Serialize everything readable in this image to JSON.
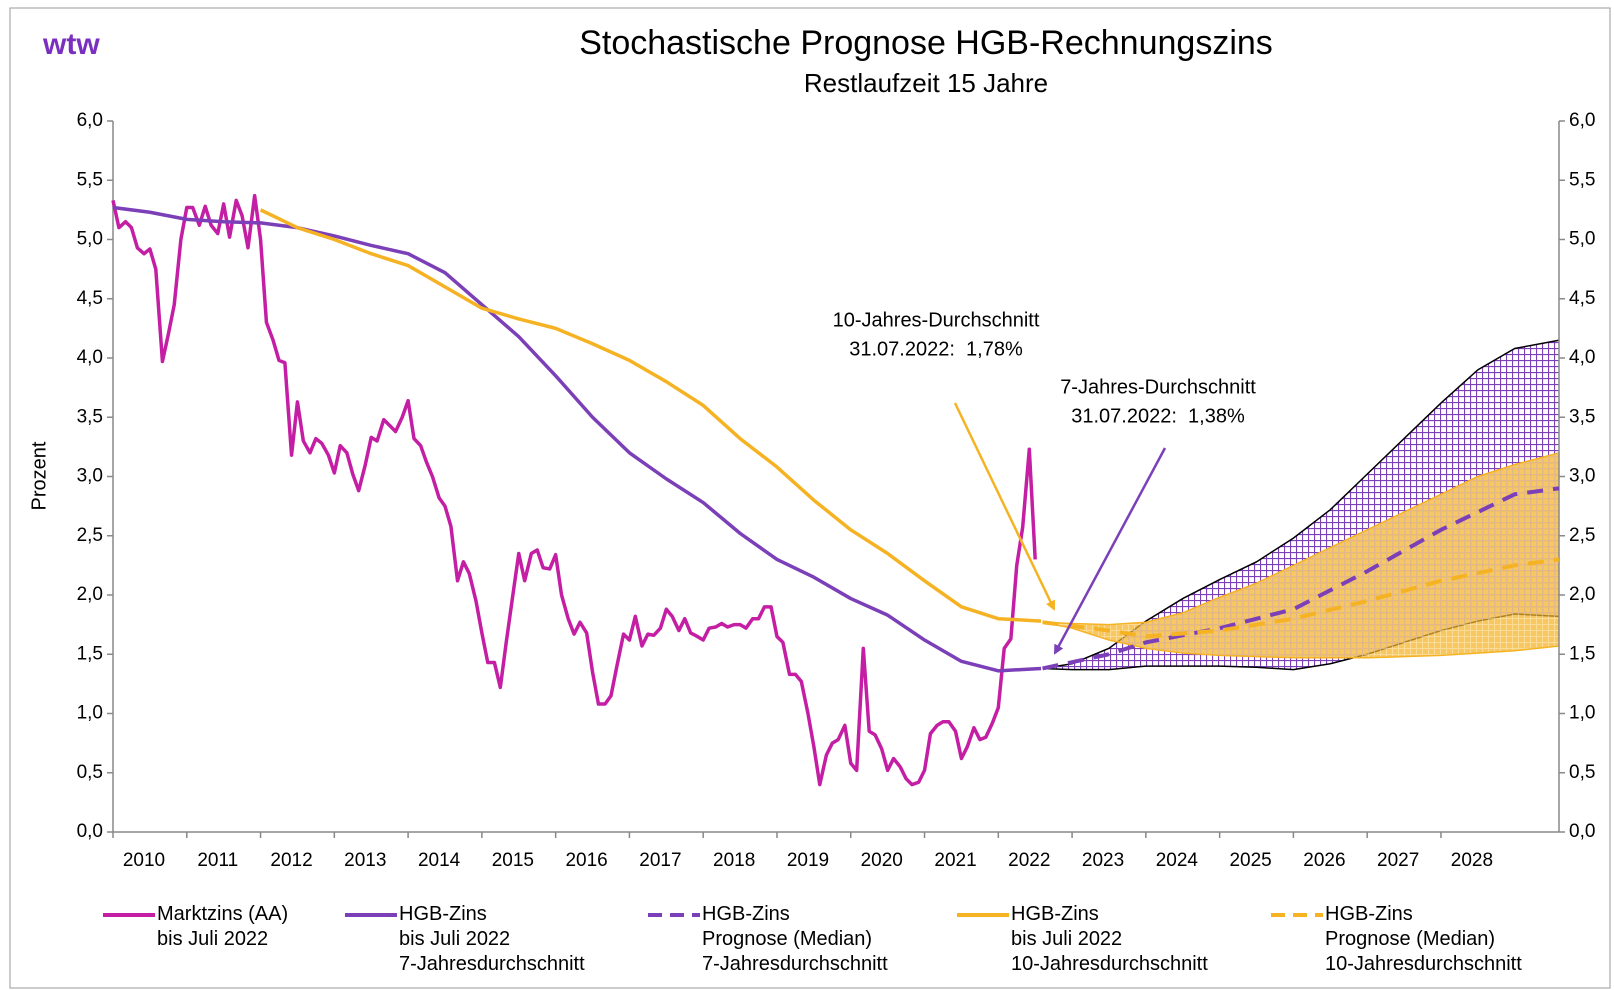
{
  "chart_data": {
    "type": "line",
    "logo": "wtw",
    "title": "Stochastische Prognose HGB-Rechnungszins",
    "subtitle": "Restlaufzeit 15 Jahre",
    "y_label": "Prozent",
    "xlim": [
      2010,
      2029.6
    ],
    "xticks": [
      2010,
      2011,
      2012,
      2013,
      2014,
      2015,
      2016,
      2017,
      2018,
      2019,
      2020,
      2021,
      2022,
      2023,
      2024,
      2025,
      2026,
      2027,
      2028
    ],
    "ylim": [
      0,
      6
    ],
    "yticks": [
      {
        "value": 0,
        "label": "0,0"
      },
      {
        "value": 0.5,
        "label": "0,5"
      },
      {
        "value": 1,
        "label": "1,0"
      },
      {
        "value": 1.5,
        "label": "1,5"
      },
      {
        "value": 2,
        "label": "2,0"
      },
      {
        "value": 2.5,
        "label": "2,5"
      },
      {
        "value": 3,
        "label": "3,0"
      },
      {
        "value": 3.5,
        "label": "3,5"
      },
      {
        "value": 4,
        "label": "4,0"
      },
      {
        "value": 4.5,
        "label": "4,5"
      },
      {
        "value": 5,
        "label": "5,0"
      },
      {
        "value": 5.5,
        "label": "5,5"
      },
      {
        "value": 6,
        "label": "6,0"
      }
    ],
    "y2lim": [
      0,
      6
    ],
    "y2ticks": [
      {
        "value": 0,
        "label": "0,0"
      },
      {
        "value": 0.5,
        "label": "0,5"
      },
      {
        "value": 1,
        "label": "1,0"
      },
      {
        "value": 1.5,
        "label": "1,5"
      },
      {
        "value": 2,
        "label": "2,0"
      },
      {
        "value": 2.5,
        "label": "2,5"
      },
      {
        "value": 3,
        "label": "3,0"
      },
      {
        "value": 3.5,
        "label": "3,5"
      },
      {
        "value": 4,
        "label": "4,0"
      },
      {
        "value": 4.5,
        "label": "4,5"
      },
      {
        "value": 5,
        "label": "5,0"
      },
      {
        "value": 5.5,
        "label": "5,5"
      },
      {
        "value": 6,
        "label": "6,0"
      }
    ],
    "grid": false,
    "bands": [
      {
        "color": "#7b3fb8",
        "edge": "#000000",
        "x": [
          2022.6,
          2023,
          2023.5,
          2024,
          2024.5,
          2025,
          2025.5,
          2026,
          2026.5,
          2027,
          2027.5,
          2028,
          2028.5,
          2029,
          2029.6
        ],
        "upper": [
          1.38,
          1.42,
          1.55,
          1.78,
          1.97,
          2.13,
          2.28,
          2.48,
          2.72,
          3.02,
          3.32,
          3.62,
          3.9,
          4.08,
          4.15
        ],
        "lower": [
          1.38,
          1.37,
          1.37,
          1.4,
          1.4,
          1.4,
          1.39,
          1.37,
          1.42,
          1.5,
          1.6,
          1.7,
          1.78,
          1.84,
          1.82
        ]
      },
      {
        "color": "#f5b324",
        "edge": "#f5b324",
        "x": [
          2022.6,
          2023,
          2023.5,
          2024,
          2024.5,
          2025,
          2025.5,
          2026,
          2026.5,
          2027,
          2027.5,
          2028,
          2028.5,
          2029,
          2029.6
        ],
        "upper": [
          1.77,
          1.76,
          1.75,
          1.77,
          1.85,
          1.98,
          2.1,
          2.25,
          2.4,
          2.55,
          2.7,
          2.85,
          3.0,
          3.1,
          3.2
        ],
        "lower": [
          1.77,
          1.72,
          1.62,
          1.55,
          1.51,
          1.49,
          1.48,
          1.47,
          1.47,
          1.47,
          1.48,
          1.49,
          1.51,
          1.53,
          1.57
        ]
      }
    ],
    "series": [
      {
        "name": "Marktzins (AA)\nbis Juli 2022",
        "color": "#c41fa4",
        "dash": false,
        "x": [
          2010,
          2010.08,
          2010.17,
          2010.25,
          2010.33,
          2010.42,
          2010.5,
          2010.58,
          2010.67,
          2010.75,
          2010.83,
          2010.92,
          2011,
          2011.08,
          2011.17,
          2011.25,
          2011.33,
          2011.42,
          2011.5,
          2011.58,
          2011.67,
          2011.75,
          2011.83,
          2011.92,
          2012,
          2012.08,
          2012.17,
          2012.25,
          2012.33,
          2012.42,
          2012.5,
          2012.58,
          2012.67,
          2012.75,
          2012.83,
          2012.92,
          2013,
          2013.08,
          2013.17,
          2013.25,
          2013.33,
          2013.42,
          2013.5,
          2013.58,
          2013.67,
          2013.75,
          2013.83,
          2013.92,
          2014,
          2014.08,
          2014.17,
          2014.25,
          2014.33,
          2014.42,
          2014.5,
          2014.58,
          2014.67,
          2014.75,
          2014.83,
          2014.92,
          2015,
          2015.08,
          2015.17,
          2015.25,
          2015.33,
          2015.42,
          2015.5,
          2015.58,
          2015.67,
          2015.75,
          2015.83,
          2015.92,
          2016,
          2016.08,
          2016.17,
          2016.25,
          2016.33,
          2016.42,
          2016.5,
          2016.58,
          2016.67,
          2016.75,
          2016.83,
          2016.92,
          2017,
          2017.08,
          2017.17,
          2017.25,
          2017.33,
          2017.42,
          2017.5,
          2017.58,
          2017.67,
          2017.75,
          2017.83,
          2017.92,
          2018,
          2018.08,
          2018.17,
          2018.25,
          2018.33,
          2018.42,
          2018.5,
          2018.58,
          2018.67,
          2018.75,
          2018.83,
          2018.92,
          2019,
          2019.08,
          2019.17,
          2019.25,
          2019.33,
          2019.42,
          2019.5,
          2019.58,
          2019.67,
          2019.75,
          2019.83,
          2019.92,
          2020,
          2020.08,
          2020.17,
          2020.25,
          2020.33,
          2020.42,
          2020.5,
          2020.58,
          2020.67,
          2020.75,
          2020.83,
          2020.92,
          2021,
          2021.08,
          2021.17,
          2021.25,
          2021.33,
          2021.42,
          2021.5,
          2021.58,
          2021.67,
          2021.75,
          2021.83,
          2021.92,
          2022,
          2022.08,
          2022.17,
          2022.25,
          2022.33,
          2022.42,
          2022.5
        ],
        "values": [
          5.33,
          5.1,
          5.15,
          5.1,
          4.93,
          4.88,
          4.92,
          4.75,
          3.97,
          4.2,
          4.45,
          5.0,
          5.27,
          5.27,
          5.12,
          5.28,
          5.12,
          5.05,
          5.3,
          5.02,
          5.33,
          5.2,
          4.93,
          5.37,
          5.0,
          4.3,
          4.15,
          3.98,
          3.96,
          3.18,
          3.63,
          3.3,
          3.2,
          3.32,
          3.28,
          3.18,
          3.03,
          3.26,
          3.2,
          3.02,
          2.88,
          3.1,
          3.33,
          3.3,
          3.48,
          3.43,
          3.38,
          3.5,
          3.64,
          3.32,
          3.26,
          3.12,
          3.0,
          2.82,
          2.75,
          2.58,
          2.12,
          2.28,
          2.18,
          1.95,
          1.68,
          1.43,
          1.43,
          1.22,
          1.6,
          2.0,
          2.35,
          2.12,
          2.35,
          2.38,
          2.23,
          2.22,
          2.34,
          2.0,
          1.8,
          1.67,
          1.77,
          1.68,
          1.35,
          1.08,
          1.08,
          1.15,
          1.4,
          1.67,
          1.62,
          1.82,
          1.57,
          1.67,
          1.66,
          1.72,
          1.88,
          1.82,
          1.7,
          1.8,
          1.68,
          1.65,
          1.62,
          1.72,
          1.73,
          1.76,
          1.73,
          1.75,
          1.75,
          1.72,
          1.8,
          1.8,
          1.9,
          1.9,
          1.65,
          1.6,
          1.33,
          1.33,
          1.27,
          1.0,
          0.72,
          0.4,
          0.65,
          0.75,
          0.78,
          0.9,
          0.58,
          0.52,
          1.55,
          0.85,
          0.82,
          0.7,
          0.52,
          0.62,
          0.55,
          0.45,
          0.4,
          0.42,
          0.52,
          0.83,
          0.9,
          0.93,
          0.93,
          0.85,
          0.62,
          0.72,
          0.88,
          0.78,
          0.8,
          0.92,
          1.05,
          1.55,
          1.63,
          2.25,
          2.57,
          3.23,
          2.3
        ]
      },
      {
        "name": "HGB-Zins\nbis Juli 2022\n7-Jahresdurchschnitt",
        "color": "#7b3fb8",
        "dash": false,
        "x": [
          2010,
          2010.5,
          2011,
          2011.5,
          2012,
          2012.5,
          2013,
          2013.5,
          2014,
          2014.5,
          2015,
          2015.5,
          2016,
          2016.5,
          2017,
          2017.5,
          2018,
          2018.5,
          2019,
          2019.5,
          2020,
          2020.5,
          2021,
          2021.5,
          2022,
          2022.58
        ],
        "values": [
          5.27,
          5.23,
          5.17,
          5.15,
          5.14,
          5.1,
          5.03,
          4.95,
          4.88,
          4.72,
          4.45,
          4.18,
          3.85,
          3.5,
          3.2,
          2.98,
          2.78,
          2.52,
          2.3,
          2.15,
          1.97,
          1.83,
          1.62,
          1.44,
          1.36,
          1.38
        ]
      },
      {
        "name": "HGB-Zins\nPrognose (Median)\n7-Jahresdurchschnitt",
        "color": "#7b3fb8",
        "dash": true,
        "x": [
          2022.6,
          2023.5,
          2024,
          2025,
          2026,
          2027,
          2028,
          2029,
          2029.6
        ],
        "values": [
          1.38,
          1.5,
          1.6,
          1.72,
          1.88,
          2.2,
          2.55,
          2.85,
          2.9
        ]
      },
      {
        "name": "HGB-Zins\nbis Juli 2022\n10-Jahresdurchschnitt",
        "color": "#f5b324",
        "dash": false,
        "x": [
          2012,
          2012.5,
          2013,
          2013.5,
          2014,
          2014.5,
          2015,
          2015.5,
          2016,
          2016.5,
          2017,
          2017.5,
          2018,
          2018.5,
          2019,
          2019.5,
          2020,
          2020.5,
          2021,
          2021.5,
          2022,
          2022.58
        ],
        "values": [
          5.25,
          5.1,
          5.0,
          4.88,
          4.78,
          4.6,
          4.42,
          4.33,
          4.25,
          4.12,
          3.98,
          3.8,
          3.6,
          3.32,
          3.08,
          2.8,
          2.55,
          2.35,
          2.12,
          1.9,
          1.8,
          1.78
        ]
      },
      {
        "name": "HGB-Zins\nPrognose (Median)\n10-Jahresdurchschnitt",
        "color": "#f5b324",
        "dash": true,
        "x": [
          2022.6,
          2023.5,
          2024,
          2025,
          2026,
          2027,
          2028,
          2029,
          2029.6
        ],
        "values": [
          1.77,
          1.7,
          1.65,
          1.7,
          1.8,
          1.95,
          2.12,
          2.25,
          2.3
        ]
      }
    ],
    "annotations": [
      {
        "lines": [
          "10-Jahres-Durchschnitt",
          "31.07.2022:  1,78%"
        ],
        "color": "#f5b324"
      },
      {
        "lines": [
          "7-Jahres-Durchschnitt",
          "31.07.2022:  1,38%"
        ],
        "color": "#7b3fb8"
      }
    ]
  }
}
